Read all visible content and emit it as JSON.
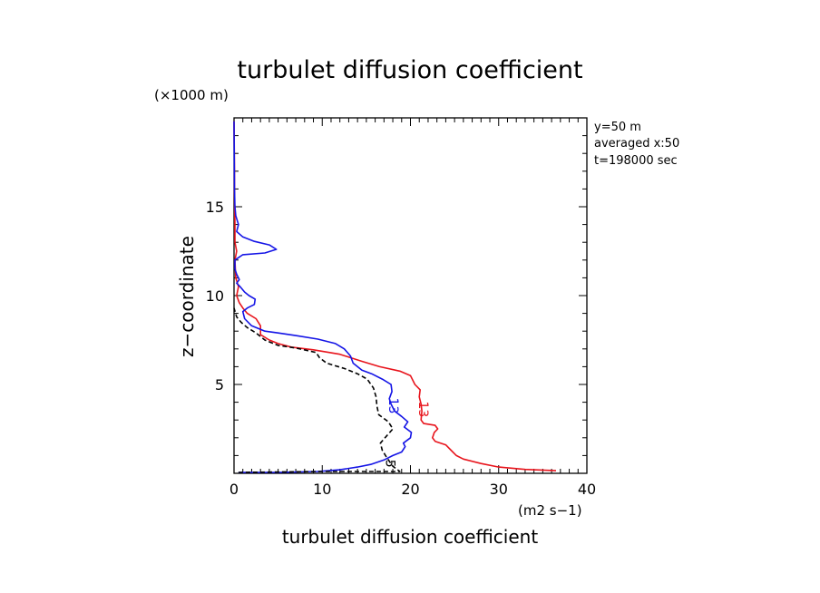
{
  "chart_data": {
    "type": "line",
    "title": "turbulet diffusion coefficient",
    "xlabel": "turbulet diffusion coefficient",
    "x_unit": "(m2 s−1)",
    "ylabel": "z−coordinate",
    "y_unit": "(×1000 m)",
    "xlim": [
      0,
      40
    ],
    "ylim": [
      0,
      20
    ],
    "x_ticks": [
      "0",
      "10",
      "20",
      "30",
      "40"
    ],
    "y_ticks": [
      "5",
      "10",
      "15"
    ],
    "annotations": [
      "y=50 m",
      "averaged  x:50",
      "t=198000 sec"
    ],
    "series": [
      {
        "color": "#e8141c",
        "dash": false,
        "label": "13",
        "label_at": [
          21.0,
          3.6
        ],
        "points": [
          [
            36.5,
            0.15
          ],
          [
            33,
            0.22
          ],
          [
            30,
            0.35
          ],
          [
            28,
            0.55
          ],
          [
            26,
            0.8
          ],
          [
            25.2,
            1.0
          ],
          [
            24.6,
            1.3
          ],
          [
            24,
            1.6
          ],
          [
            22.8,
            1.8
          ],
          [
            22.5,
            2.0
          ],
          [
            22.7,
            2.3
          ],
          [
            23.1,
            2.5
          ],
          [
            22.8,
            2.7
          ],
          [
            21.5,
            2.8
          ],
          [
            21.2,
            3.0
          ],
          [
            21.3,
            3.5
          ],
          [
            21.2,
            3.9
          ],
          [
            21.0,
            4.3
          ],
          [
            21.1,
            4.7
          ],
          [
            20.5,
            5.0
          ],
          [
            20.0,
            5.5
          ],
          [
            18.8,
            5.75
          ],
          [
            16.5,
            6.0
          ],
          [
            14.5,
            6.3
          ],
          [
            12.0,
            6.7
          ],
          [
            9.0,
            6.95
          ],
          [
            6.5,
            7.1
          ],
          [
            5.0,
            7.3
          ],
          [
            4.0,
            7.5
          ],
          [
            3.0,
            7.8
          ],
          [
            3.0,
            8.3
          ],
          [
            2.5,
            8.7
          ],
          [
            1.5,
            9.0
          ],
          [
            1.0,
            9.3
          ],
          [
            0.6,
            9.6
          ],
          [
            0.3,
            10.0
          ],
          [
            0.5,
            10.5
          ],
          [
            0.2,
            11.0
          ],
          [
            0.1,
            12.0
          ],
          [
            0.3,
            12.5
          ],
          [
            0.1,
            13.0
          ],
          [
            0.1,
            14.0
          ],
          [
            0.05,
            16.0
          ],
          [
            0.05,
            17.0
          ],
          [
            0.0,
            19.8
          ]
        ]
      },
      {
        "color": "#1414e6",
        "dash": false,
        "label": "13",
        "label_at": [
          17.6,
          3.8
        ],
        "points": [
          [
            0.5,
            0.05
          ],
          [
            5,
            0.05
          ],
          [
            9.5,
            0.1
          ],
          [
            12,
            0.2
          ],
          [
            14,
            0.35
          ],
          [
            15.5,
            0.5
          ],
          [
            17,
            0.75
          ],
          [
            18,
            1.0
          ],
          [
            19,
            1.2
          ],
          [
            19.4,
            1.5
          ],
          [
            19.2,
            1.7
          ],
          [
            20,
            2.0
          ],
          [
            20.1,
            2.3
          ],
          [
            19.3,
            2.6
          ],
          [
            19.7,
            2.9
          ],
          [
            19.0,
            3.2
          ],
          [
            18.2,
            3.5
          ],
          [
            17.8,
            3.9
          ],
          [
            17.6,
            4.2
          ],
          [
            17.9,
            4.6
          ],
          [
            17.8,
            5.0
          ],
          [
            16.8,
            5.3
          ],
          [
            15.6,
            5.6
          ],
          [
            14.5,
            5.8
          ],
          [
            13.5,
            6.2
          ],
          [
            13.2,
            6.6
          ],
          [
            12.5,
            7.0
          ],
          [
            11.5,
            7.3
          ],
          [
            9.5,
            7.55
          ],
          [
            7.0,
            7.75
          ],
          [
            5.0,
            7.9
          ],
          [
            3.5,
            8.0
          ],
          [
            2.0,
            8.3
          ],
          [
            1.2,
            8.7
          ],
          [
            1.0,
            9.1
          ],
          [
            1.5,
            9.3
          ],
          [
            2.3,
            9.5
          ],
          [
            2.4,
            9.8
          ],
          [
            1.7,
            10.0
          ],
          [
            1.2,
            10.2
          ],
          [
            0.7,
            10.5
          ],
          [
            0.3,
            10.7
          ],
          [
            0.6,
            10.9
          ],
          [
            0.3,
            11.2
          ],
          [
            0.1,
            11.5
          ],
          [
            0.1,
            12.0
          ],
          [
            1.0,
            12.3
          ],
          [
            3.5,
            12.4
          ],
          [
            4.8,
            12.6
          ],
          [
            4.0,
            12.85
          ],
          [
            2.3,
            13.05
          ],
          [
            1.0,
            13.3
          ],
          [
            0.3,
            13.6
          ],
          [
            0.5,
            14.0
          ],
          [
            0.2,
            14.5
          ],
          [
            0.1,
            15.0
          ],
          [
            0.05,
            16.0
          ],
          [
            0.0,
            19.8
          ]
        ]
      },
      {
        "color": "#000000",
        "dash": true,
        "label": "5",
        "label_at": [
          17.2,
          0.55
        ],
        "points": [
          [
            0.5,
            0.05
          ],
          [
            10,
            0.1
          ],
          [
            18.8,
            0.1
          ],
          [
            18.0,
            0.4
          ],
          [
            17.3,
            0.9
          ],
          [
            16.8,
            1.3
          ],
          [
            16.6,
            1.7
          ],
          [
            17.3,
            2.1
          ],
          [
            18.0,
            2.5
          ],
          [
            17.5,
            2.9
          ],
          [
            16.4,
            3.3
          ],
          [
            16.2,
            3.8
          ],
          [
            16.1,
            4.3
          ],
          [
            15.8,
            4.8
          ],
          [
            15.1,
            5.3
          ],
          [
            14.0,
            5.6
          ],
          [
            12.5,
            5.9
          ],
          [
            10.5,
            6.2
          ],
          [
            9.7,
            6.5
          ],
          [
            9.3,
            6.8
          ],
          [
            7.0,
            7.05
          ],
          [
            5.0,
            7.2
          ],
          [
            3.5,
            7.5
          ],
          [
            2.5,
            7.9
          ],
          [
            1.5,
            8.2
          ],
          [
            0.8,
            8.5
          ],
          [
            0.3,
            8.8
          ],
          [
            0.0,
            9.3
          ]
        ]
      }
    ]
  }
}
